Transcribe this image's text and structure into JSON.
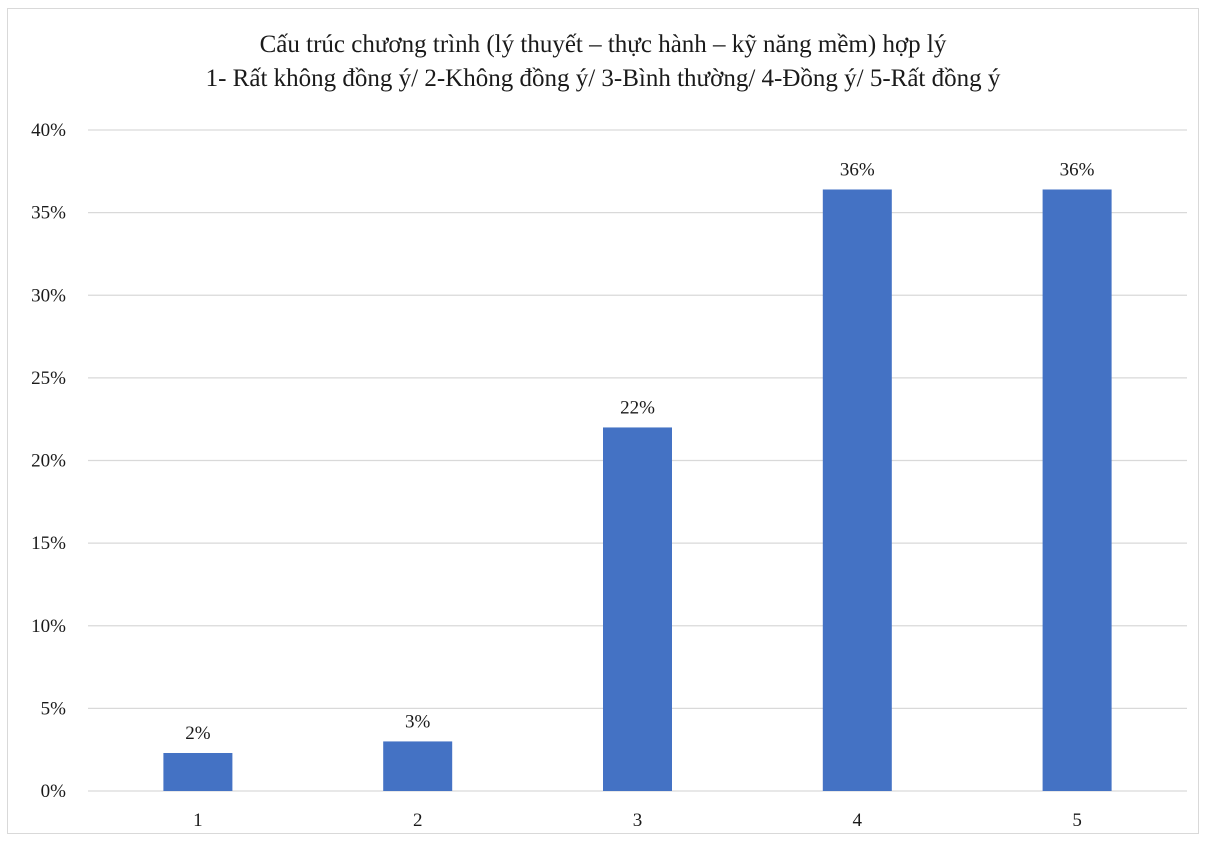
{
  "chart_data": {
    "type": "bar",
    "title": "Cấu trúc chương trình (lý thuyết – thực hành – kỹ năng mềm) hợp lý",
    "subtitle": "1- Rất không đồng ý/ 2-Không đồng ý/ 3-Bình thường/ 4-Đồng ý/ 5-Rất đồng ý",
    "categories": [
      "1",
      "2",
      "3",
      "4",
      "5"
    ],
    "values": [
      2.3,
      3.0,
      22.0,
      36.4,
      36.4
    ],
    "data_labels": [
      "2%",
      "3%",
      "22%",
      "36%",
      "36%"
    ],
    "y_ticks": [
      "0%",
      "5%",
      "10%",
      "15%",
      "20%",
      "25%",
      "30%",
      "35%",
      "40%"
    ],
    "ylim": [
      0,
      40
    ],
    "xlabel": "",
    "ylabel": "",
    "grid": true,
    "legend": "none",
    "bar_color": "#4472c4",
    "grid_color": "#d9d9d9"
  }
}
